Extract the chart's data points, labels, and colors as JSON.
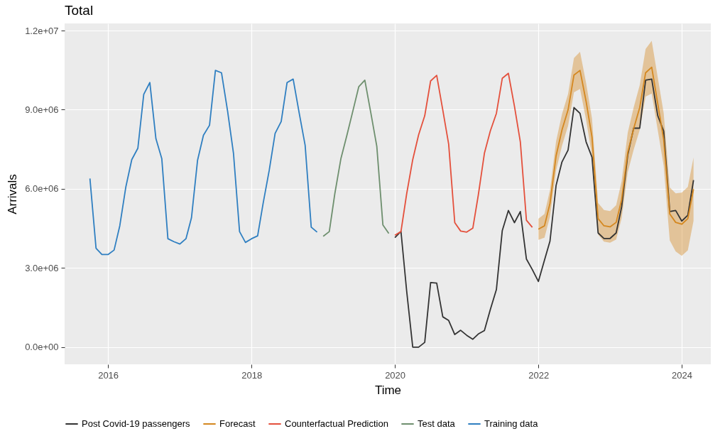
{
  "chart_data": {
    "type": "line",
    "title": "Total",
    "xlabel": "Time",
    "ylabel": "Arrivals",
    "xlim": [
      "2015-05-25",
      "2024-05-28"
    ],
    "xticks": [
      {
        "value": "2016-01-01",
        "label": "2016"
      },
      {
        "value": "2018-01-01",
        "label": "2018"
      },
      {
        "value": "2020-01-01",
        "label": "2020"
      },
      {
        "value": "2022-01-01",
        "label": "2022"
      },
      {
        "value": "2024-01-01",
        "label": "2024"
      }
    ],
    "ylim": [
      -650000,
      12270000
    ],
    "yticks": [
      {
        "value": 0,
        "label": "0.0e+00"
      },
      {
        "value": 3000000,
        "label": "3.0e+06"
      },
      {
        "value": 6000000,
        "label": "6.0e+06"
      },
      {
        "value": 9000000,
        "label": "9.0e+06"
      },
      {
        "value": 12000000,
        "label": "1.2e+07"
      }
    ],
    "grid": true,
    "legend": "bottom",
    "series": [
      {
        "name": "Post Covid-19 passengers",
        "color": "#333333",
        "x": [
          "2020-01",
          "2020-02",
          "2020-03",
          "2020-04",
          "2020-05",
          "2020-06",
          "2020-07",
          "2020-08",
          "2020-09",
          "2020-10",
          "2020-11",
          "2020-12",
          "2021-01",
          "2021-02",
          "2021-03",
          "2021-04",
          "2021-05",
          "2021-06",
          "2021-07",
          "2021-08",
          "2021-09",
          "2021-10",
          "2021-11",
          "2021-12",
          "2022-01",
          "2022-02",
          "2022-03",
          "2022-04",
          "2022-05",
          "2022-06",
          "2022-07",
          "2022-08",
          "2022-09",
          "2022-10",
          "2022-11",
          "2022-12",
          "2023-01",
          "2023-02",
          "2023-03",
          "2023-04",
          "2023-05",
          "2023-06",
          "2023-07",
          "2023-08",
          "2023-09",
          "2023-10",
          "2023-11",
          "2023-12",
          "2024-01",
          "2024-02",
          "2024-03"
        ],
        "values": [
          4150000,
          4390000,
          2130000,
          0,
          0,
          180000,
          2450000,
          2430000,
          1150000,
          1010000,
          480000,
          640000,
          450000,
          300000,
          500000,
          630000,
          1420000,
          2180000,
          4420000,
          5180000,
          4720000,
          5140000,
          3340000,
          2940000,
          2490000,
          3300000,
          4020000,
          6130000,
          7020000,
          7470000,
          9080000,
          8860000,
          7780000,
          7200000,
          4330000,
          4120000,
          4120000,
          4330000,
          5320000,
          7290000,
          8300000,
          8300000,
          10120000,
          10160000,
          8770000,
          8190000,
          5140000,
          5180000,
          4780000,
          5000000,
          6330000
        ]
      },
      {
        "name": "Forecast",
        "color": "#d4871f",
        "x": [
          "2022-01",
          "2022-02",
          "2022-03",
          "2022-04",
          "2022-05",
          "2022-06",
          "2022-07",
          "2022-08",
          "2022-09",
          "2022-10",
          "2022-11",
          "2022-12",
          "2023-01",
          "2023-02",
          "2023-03",
          "2023-04",
          "2023-05",
          "2023-06",
          "2023-07",
          "2023-08",
          "2023-09",
          "2023-10",
          "2023-11",
          "2023-12",
          "2024-01",
          "2024-02",
          "2024-03"
        ],
        "values": [
          4470000,
          4600000,
          5450000,
          7250000,
          8230000,
          8990000,
          10310000,
          10490000,
          9310000,
          7960000,
          4870000,
          4600000,
          4560000,
          4730000,
          5590000,
          7380000,
          8280000,
          9080000,
          10400000,
          10610000,
          9220000,
          7870000,
          5050000,
          4730000,
          4660000,
          4870000,
          5990000
        ],
        "lower": [
          4070000,
          4150000,
          4950000,
          6700000,
          7630000,
          8390000,
          9660000,
          9790000,
          8610000,
          7260000,
          4270000,
          4000000,
          3960000,
          4080000,
          4890000,
          6630000,
          7480000,
          8230000,
          9500000,
          9610000,
          8220000,
          6870000,
          4050000,
          3630000,
          3460000,
          3670000,
          4790000
        ],
        "upper": [
          4870000,
          5050000,
          5950000,
          7800000,
          8830000,
          9590000,
          10960000,
          11190000,
          10010000,
          8660000,
          5470000,
          5200000,
          5160000,
          5380000,
          6290000,
          8130000,
          9080000,
          9930000,
          11300000,
          11610000,
          10220000,
          8870000,
          6050000,
          5830000,
          5860000,
          6070000,
          7190000
        ]
      },
      {
        "name": "Counterfactual Prediction",
        "color": "#e4503c",
        "x": [
          "2020-01",
          "2020-02",
          "2020-03",
          "2020-04",
          "2020-05",
          "2020-06",
          "2020-07",
          "2020-08",
          "2020-09",
          "2020-10",
          "2020-11",
          "2020-12",
          "2021-01",
          "2021-02",
          "2021-03",
          "2021-04",
          "2021-05",
          "2021-06",
          "2021-07",
          "2021-08",
          "2021-09",
          "2021-10",
          "2021-11",
          "2021-12"
        ],
        "values": [
          4240000,
          4380000,
          5810000,
          7110000,
          8050000,
          8770000,
          10090000,
          10300000,
          8990000,
          7690000,
          4720000,
          4400000,
          4360000,
          4510000,
          5770000,
          7350000,
          8190000,
          8860000,
          10190000,
          10380000,
          9130000,
          7780000,
          4810000,
          4540000
        ]
      },
      {
        "name": "Test data",
        "color": "#6e8f6e",
        "x": [
          "2019-01",
          "2019-02",
          "2019-03",
          "2019-04",
          "2019-05",
          "2019-06",
          "2019-07",
          "2019-08",
          "2019-09",
          "2019-10",
          "2019-11",
          "2019-12"
        ],
        "values": [
          4200000,
          4380000,
          5810000,
          7140000,
          8010000,
          8950000,
          9870000,
          10120000,
          8860000,
          7610000,
          4630000,
          4310000
        ]
      },
      {
        "name": "Training data",
        "color": "#2f7fc1",
        "x": [
          "2015-10",
          "2015-11",
          "2015-12",
          "2016-01",
          "2016-02",
          "2016-03",
          "2016-04",
          "2016-05",
          "2016-06",
          "2016-07",
          "2016-08",
          "2016-09",
          "2016-10",
          "2016-11",
          "2016-12",
          "2017-01",
          "2017-02",
          "2017-03",
          "2017-04",
          "2017-05",
          "2017-06",
          "2017-07",
          "2017-08",
          "2017-09",
          "2017-10",
          "2017-11",
          "2017-12",
          "2018-01",
          "2018-02",
          "2018-03",
          "2018-04",
          "2018-05",
          "2018-06",
          "2018-07",
          "2018-08",
          "2018-09",
          "2018-10",
          "2018-11",
          "2018-12"
        ],
        "values": [
          6390000,
          3750000,
          3510000,
          3510000,
          3680000,
          4600000,
          6080000,
          7110000,
          7540000,
          9580000,
          10030000,
          7900000,
          7140000,
          4110000,
          4000000,
          3910000,
          4110000,
          4900000,
          7080000,
          8030000,
          8410000,
          10490000,
          10400000,
          8950000,
          7350000,
          4380000,
          3970000,
          4110000,
          4220000,
          5450000,
          6700000,
          8100000,
          8550000,
          10030000,
          10160000,
          8860000,
          7650000,
          4550000,
          4360000
        ]
      }
    ]
  }
}
